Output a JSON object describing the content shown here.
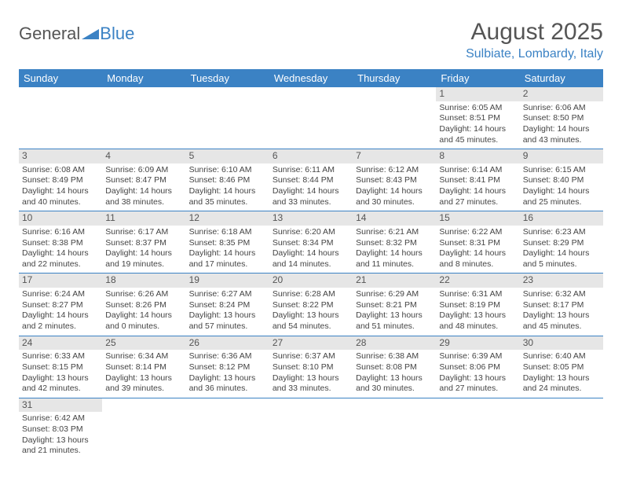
{
  "brand": {
    "part1": "General",
    "part2": "Blue"
  },
  "title": {
    "month": "August 2025",
    "location": "Sulbiate, Lombardy, Italy"
  },
  "colors": {
    "accent": "#3b82c4",
    "header_text": "#ffffff",
    "daynum_bg": "#e6e6e6",
    "body_text": "#444444"
  },
  "weekdays": [
    "Sunday",
    "Monday",
    "Tuesday",
    "Wednesday",
    "Thursday",
    "Friday",
    "Saturday"
  ],
  "weeks": [
    [
      null,
      null,
      null,
      null,
      null,
      {
        "n": "1",
        "sunrise": "Sunrise: 6:05 AM",
        "sunset": "Sunset: 8:51 PM",
        "day1": "Daylight: 14 hours",
        "day2": "and 45 minutes."
      },
      {
        "n": "2",
        "sunrise": "Sunrise: 6:06 AM",
        "sunset": "Sunset: 8:50 PM",
        "day1": "Daylight: 14 hours",
        "day2": "and 43 minutes."
      }
    ],
    [
      {
        "n": "3",
        "sunrise": "Sunrise: 6:08 AM",
        "sunset": "Sunset: 8:49 PM",
        "day1": "Daylight: 14 hours",
        "day2": "and 40 minutes."
      },
      {
        "n": "4",
        "sunrise": "Sunrise: 6:09 AM",
        "sunset": "Sunset: 8:47 PM",
        "day1": "Daylight: 14 hours",
        "day2": "and 38 minutes."
      },
      {
        "n": "5",
        "sunrise": "Sunrise: 6:10 AM",
        "sunset": "Sunset: 8:46 PM",
        "day1": "Daylight: 14 hours",
        "day2": "and 35 minutes."
      },
      {
        "n": "6",
        "sunrise": "Sunrise: 6:11 AM",
        "sunset": "Sunset: 8:44 PM",
        "day1": "Daylight: 14 hours",
        "day2": "and 33 minutes."
      },
      {
        "n": "7",
        "sunrise": "Sunrise: 6:12 AM",
        "sunset": "Sunset: 8:43 PM",
        "day1": "Daylight: 14 hours",
        "day2": "and 30 minutes."
      },
      {
        "n": "8",
        "sunrise": "Sunrise: 6:14 AM",
        "sunset": "Sunset: 8:41 PM",
        "day1": "Daylight: 14 hours",
        "day2": "and 27 minutes."
      },
      {
        "n": "9",
        "sunrise": "Sunrise: 6:15 AM",
        "sunset": "Sunset: 8:40 PM",
        "day1": "Daylight: 14 hours",
        "day2": "and 25 minutes."
      }
    ],
    [
      {
        "n": "10",
        "sunrise": "Sunrise: 6:16 AM",
        "sunset": "Sunset: 8:38 PM",
        "day1": "Daylight: 14 hours",
        "day2": "and 22 minutes."
      },
      {
        "n": "11",
        "sunrise": "Sunrise: 6:17 AM",
        "sunset": "Sunset: 8:37 PM",
        "day1": "Daylight: 14 hours",
        "day2": "and 19 minutes."
      },
      {
        "n": "12",
        "sunrise": "Sunrise: 6:18 AM",
        "sunset": "Sunset: 8:35 PM",
        "day1": "Daylight: 14 hours",
        "day2": "and 17 minutes."
      },
      {
        "n": "13",
        "sunrise": "Sunrise: 6:20 AM",
        "sunset": "Sunset: 8:34 PM",
        "day1": "Daylight: 14 hours",
        "day2": "and 14 minutes."
      },
      {
        "n": "14",
        "sunrise": "Sunrise: 6:21 AM",
        "sunset": "Sunset: 8:32 PM",
        "day1": "Daylight: 14 hours",
        "day2": "and 11 minutes."
      },
      {
        "n": "15",
        "sunrise": "Sunrise: 6:22 AM",
        "sunset": "Sunset: 8:31 PM",
        "day1": "Daylight: 14 hours",
        "day2": "and 8 minutes."
      },
      {
        "n": "16",
        "sunrise": "Sunrise: 6:23 AM",
        "sunset": "Sunset: 8:29 PM",
        "day1": "Daylight: 14 hours",
        "day2": "and 5 minutes."
      }
    ],
    [
      {
        "n": "17",
        "sunrise": "Sunrise: 6:24 AM",
        "sunset": "Sunset: 8:27 PM",
        "day1": "Daylight: 14 hours",
        "day2": "and 2 minutes."
      },
      {
        "n": "18",
        "sunrise": "Sunrise: 6:26 AM",
        "sunset": "Sunset: 8:26 PM",
        "day1": "Daylight: 14 hours",
        "day2": "and 0 minutes."
      },
      {
        "n": "19",
        "sunrise": "Sunrise: 6:27 AM",
        "sunset": "Sunset: 8:24 PM",
        "day1": "Daylight: 13 hours",
        "day2": "and 57 minutes."
      },
      {
        "n": "20",
        "sunrise": "Sunrise: 6:28 AM",
        "sunset": "Sunset: 8:22 PM",
        "day1": "Daylight: 13 hours",
        "day2": "and 54 minutes."
      },
      {
        "n": "21",
        "sunrise": "Sunrise: 6:29 AM",
        "sunset": "Sunset: 8:21 PM",
        "day1": "Daylight: 13 hours",
        "day2": "and 51 minutes."
      },
      {
        "n": "22",
        "sunrise": "Sunrise: 6:31 AM",
        "sunset": "Sunset: 8:19 PM",
        "day1": "Daylight: 13 hours",
        "day2": "and 48 minutes."
      },
      {
        "n": "23",
        "sunrise": "Sunrise: 6:32 AM",
        "sunset": "Sunset: 8:17 PM",
        "day1": "Daylight: 13 hours",
        "day2": "and 45 minutes."
      }
    ],
    [
      {
        "n": "24",
        "sunrise": "Sunrise: 6:33 AM",
        "sunset": "Sunset: 8:15 PM",
        "day1": "Daylight: 13 hours",
        "day2": "and 42 minutes."
      },
      {
        "n": "25",
        "sunrise": "Sunrise: 6:34 AM",
        "sunset": "Sunset: 8:14 PM",
        "day1": "Daylight: 13 hours",
        "day2": "and 39 minutes."
      },
      {
        "n": "26",
        "sunrise": "Sunrise: 6:36 AM",
        "sunset": "Sunset: 8:12 PM",
        "day1": "Daylight: 13 hours",
        "day2": "and 36 minutes."
      },
      {
        "n": "27",
        "sunrise": "Sunrise: 6:37 AM",
        "sunset": "Sunset: 8:10 PM",
        "day1": "Daylight: 13 hours",
        "day2": "and 33 minutes."
      },
      {
        "n": "28",
        "sunrise": "Sunrise: 6:38 AM",
        "sunset": "Sunset: 8:08 PM",
        "day1": "Daylight: 13 hours",
        "day2": "and 30 minutes."
      },
      {
        "n": "29",
        "sunrise": "Sunrise: 6:39 AM",
        "sunset": "Sunset: 8:06 PM",
        "day1": "Daylight: 13 hours",
        "day2": "and 27 minutes."
      },
      {
        "n": "30",
        "sunrise": "Sunrise: 6:40 AM",
        "sunset": "Sunset: 8:05 PM",
        "day1": "Daylight: 13 hours",
        "day2": "and 24 minutes."
      }
    ],
    [
      {
        "n": "31",
        "sunrise": "Sunrise: 6:42 AM",
        "sunset": "Sunset: 8:03 PM",
        "day1": "Daylight: 13 hours",
        "day2": "and 21 minutes."
      },
      null,
      null,
      null,
      null,
      null,
      null
    ]
  ]
}
